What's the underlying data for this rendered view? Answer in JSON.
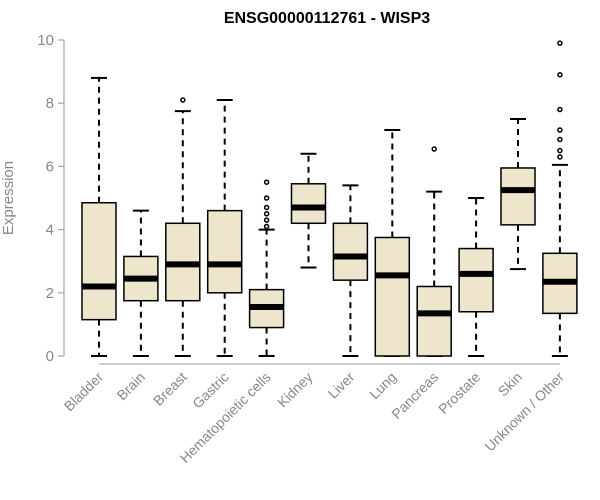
{
  "chart_data": {
    "type": "boxplot",
    "title": "ENSG00000112761 - WISP3",
    "xlabel": "",
    "ylabel": "Expression",
    "ylim": [
      0,
      10
    ],
    "yticks": [
      0,
      2,
      4,
      6,
      8,
      10
    ],
    "grid": false,
    "colors": {
      "box_fill": "#ede6cc",
      "stroke": "#000000",
      "axis": "#999999",
      "tick_text": "#888888"
    },
    "categories": [
      "Bladder",
      "Brain",
      "Breast",
      "Gastric",
      "Hematopoietic cells",
      "Kidney",
      "Liver",
      "Lung",
      "Pancreas",
      "Prostate",
      "Skin",
      "Unknown / Other"
    ],
    "boxes": [
      {
        "min": 0,
        "q1": 1.15,
        "median": 2.2,
        "q3": 4.85,
        "max": 8.8,
        "outliers": []
      },
      {
        "min": 0,
        "q1": 1.75,
        "median": 2.45,
        "q3": 3.15,
        "max": 4.6,
        "outliers": []
      },
      {
        "min": 0,
        "q1": 1.75,
        "median": 2.9,
        "q3": 4.2,
        "max": 7.75,
        "outliers": [
          8.1
        ]
      },
      {
        "min": 0,
        "q1": 2.0,
        "median": 2.9,
        "q3": 4.6,
        "max": 8.1,
        "outliers": []
      },
      {
        "min": 0,
        "q1": 0.9,
        "median": 1.55,
        "q3": 2.1,
        "max": 4.0,
        "outliers": [
          4.1,
          4.3,
          4.5,
          4.7,
          5.0,
          5.5
        ]
      },
      {
        "min": 2.8,
        "q1": 4.2,
        "median": 4.7,
        "q3": 5.45,
        "max": 6.4,
        "outliers": []
      },
      {
        "min": 0,
        "q1": 2.4,
        "median": 3.15,
        "q3": 4.2,
        "max": 5.4,
        "outliers": []
      },
      {
        "min": 0,
        "q1": 0,
        "median": 2.55,
        "q3": 3.75,
        "max": 7.15,
        "outliers": []
      },
      {
        "min": 0,
        "q1": 0,
        "median": 1.35,
        "q3": 2.2,
        "max": 5.2,
        "outliers": [
          6.55
        ]
      },
      {
        "min": 0,
        "q1": 1.4,
        "median": 2.6,
        "q3": 3.4,
        "max": 5.0,
        "outliers": []
      },
      {
        "min": 2.75,
        "q1": 4.15,
        "median": 5.25,
        "q3": 5.95,
        "max": 7.5,
        "outliers": []
      },
      {
        "min": 0,
        "q1": 1.35,
        "median": 2.35,
        "q3": 3.25,
        "max": 6.05,
        "outliers": [
          6.3,
          6.5,
          6.85,
          7.15,
          7.8,
          8.9,
          9.9
        ]
      }
    ]
  }
}
